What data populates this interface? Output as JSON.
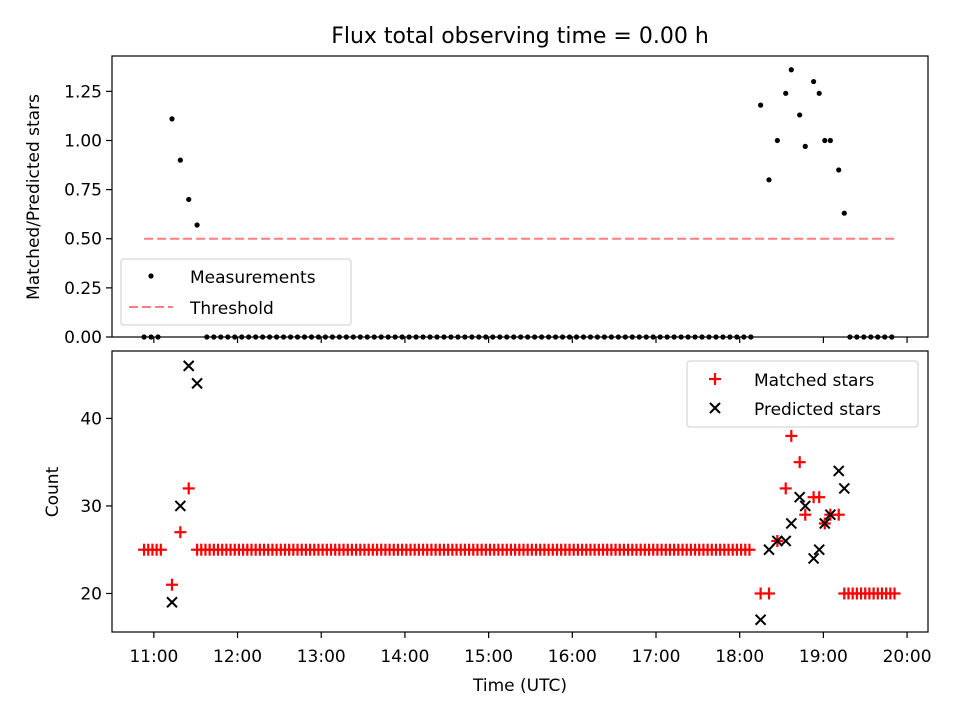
{
  "title": "Flux total observing time = 0.00 h",
  "x_axis": {
    "label": "Time (UTC)",
    "range": [
      "10:30",
      "20:15"
    ],
    "ticks": [
      "11:00",
      "12:00",
      "13:00",
      "14:00",
      "15:00",
      "16:00",
      "17:00",
      "18:00",
      "19:00",
      "20:00"
    ]
  },
  "chart_data": [
    {
      "type": "scatter",
      "panel": "top",
      "ylabel": "Matched/Predicted stars",
      "ylim": [
        0,
        1.43
      ],
      "yticks": [
        "0.00",
        "0.25",
        "0.50",
        "0.75",
        "1.00",
        "1.25"
      ],
      "legend": {
        "position": "lower-left"
      },
      "series": [
        {
          "name": "Measurements",
          "kind": "scatter",
          "marker": "dot",
          "color": "#000000",
          "points": [
            {
              "t": "11:13",
              "y": 1.11
            },
            {
              "t": "11:19",
              "y": 0.9
            },
            {
              "t": "11:25",
              "y": 0.7
            },
            {
              "t": "11:31",
              "y": 0.57
            },
            {
              "t": "18:15",
              "y": 1.18
            },
            {
              "t": "18:21",
              "y": 0.8
            },
            {
              "t": "18:27",
              "y": 1.0
            },
            {
              "t": "18:33",
              "y": 1.24
            },
            {
              "t": "18:37",
              "y": 1.36
            },
            {
              "t": "18:43",
              "y": 1.13
            },
            {
              "t": "18:47",
              "y": 0.97
            },
            {
              "t": "18:53",
              "y": 1.3
            },
            {
              "t": "18:57",
              "y": 1.24
            },
            {
              "t": "19:01",
              "y": 1.0
            },
            {
              "t": "19:05",
              "y": 1.0
            },
            {
              "t": "19:11",
              "y": 0.85
            },
            {
              "t": "19:15",
              "y": 0.63
            }
          ],
          "zero_runs": [
            {
              "start": "10:53",
              "end": "11:07",
              "step_min": 5,
              "y": 0
            },
            {
              "start": "11:38",
              "end": "18:09",
              "step_min": 5,
              "y": 0
            },
            {
              "start": "19:19",
              "end": "19:53",
              "step_min": 5,
              "y": 0
            }
          ]
        },
        {
          "name": "Threshold",
          "kind": "line",
          "style": "dashed",
          "color": "#ff7f7f",
          "x": [
            "10:53",
            "19:53"
          ],
          "y": [
            0.5,
            0.5
          ]
        }
      ]
    },
    {
      "type": "scatter",
      "panel": "bottom",
      "ylabel": "Count",
      "ylim": [
        15.6,
        47.7
      ],
      "yticks": [
        "20",
        "30",
        "40"
      ],
      "legend": {
        "position": "top-right"
      },
      "series": [
        {
          "name": "Matched stars",
          "marker": "plus",
          "color": "#ff0000",
          "points": [
            {
              "t": "11:13",
              "y": 21
            },
            {
              "t": "11:19",
              "y": 27
            },
            {
              "t": "11:25",
              "y": 32
            },
            {
              "t": "18:15",
              "y": 20
            },
            {
              "t": "18:21",
              "y": 20
            },
            {
              "t": "18:27",
              "y": 26
            },
            {
              "t": "18:33",
              "y": 32
            },
            {
              "t": "18:37",
              "y": 38
            },
            {
              "t": "18:43",
              "y": 35
            },
            {
              "t": "18:47",
              "y": 29
            },
            {
              "t": "18:53",
              "y": 31
            },
            {
              "t": "18:57",
              "y": 31
            },
            {
              "t": "19:01",
              "y": 28
            },
            {
              "t": "19:05",
              "y": 29
            },
            {
              "t": "19:11",
              "y": 29
            }
          ],
          "constant_runs": [
            {
              "start": "10:53",
              "end": "11:07",
              "step_min": 3,
              "y": 25
            },
            {
              "start": "11:31",
              "end": "18:09",
              "step_min": 3,
              "y": 25
            },
            {
              "start": "19:15",
              "end": "19:53",
              "step_min": 3,
              "y": 20
            }
          ]
        },
        {
          "name": "Predicted stars",
          "marker": "x",
          "color": "#000000",
          "points": [
            {
              "t": "11:13",
              "y": 19
            },
            {
              "t": "11:19",
              "y": 30
            },
            {
              "t": "11:25",
              "y": 46
            },
            {
              "t": "11:31",
              "y": 44
            },
            {
              "t": "18:15",
              "y": 17
            },
            {
              "t": "18:21",
              "y": 25
            },
            {
              "t": "18:27",
              "y": 26
            },
            {
              "t": "18:33",
              "y": 26
            },
            {
              "t": "18:37",
              "y": 28
            },
            {
              "t": "18:43",
              "y": 31
            },
            {
              "t": "18:47",
              "y": 30
            },
            {
              "t": "18:53",
              "y": 24
            },
            {
              "t": "18:57",
              "y": 25
            },
            {
              "t": "19:01",
              "y": 28
            },
            {
              "t": "19:05",
              "y": 29
            },
            {
              "t": "19:11",
              "y": 34
            },
            {
              "t": "19:15",
              "y": 32
            }
          ]
        }
      ]
    }
  ]
}
